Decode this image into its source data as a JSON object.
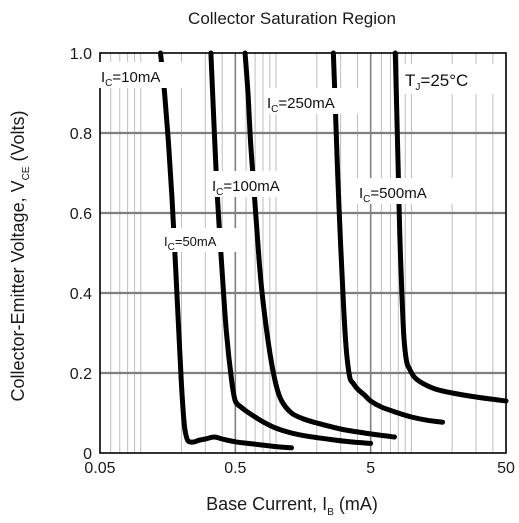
{
  "chart_data": {
    "type": "line",
    "title": "Collector Saturation Region",
    "xlabel": {
      "main": "Base Current, I",
      "sub": "B",
      "unit": " (mA)"
    },
    "ylabel": {
      "main": "Collector-Emitter Voltage, V",
      "sub": "CE",
      "unit": " (Volts)"
    },
    "x_scale": "log",
    "xlim": [
      0.05,
      50
    ],
    "ylim": [
      0,
      1.0
    ],
    "x_ticks": [
      {
        "value": 0.05,
        "label": "0.05"
      },
      {
        "value": 0.5,
        "label": "0.5"
      },
      {
        "value": 5,
        "label": "5"
      },
      {
        "value": 50,
        "label": "50"
      }
    ],
    "y_ticks": [
      {
        "value": 0,
        "label": "0"
      },
      {
        "value": 0.2,
        "label": "0.2"
      },
      {
        "value": 0.4,
        "label": "0.4"
      },
      {
        "value": 0.6,
        "label": "0.6"
      },
      {
        "value": 0.8,
        "label": "0.8"
      },
      {
        "value": 1.0,
        "label": "1.0"
      }
    ],
    "grid": true,
    "annotation": {
      "main": "T",
      "sub": "J",
      "rest": "=25°C"
    },
    "series": [
      {
        "name": "IC=10mA",
        "label": {
          "main": "I",
          "sub": "C",
          "rest": "=10mA"
        },
        "x": [
          0.14,
          0.15,
          0.16,
          0.17,
          0.18,
          0.19,
          0.2,
          0.21,
          0.22,
          0.23,
          0.25,
          0.27,
          0.3,
          0.35,
          0.4,
          0.5,
          0.7,
          1.0,
          1.3
        ],
        "y": [
          1.0,
          0.9,
          0.78,
          0.64,
          0.48,
          0.32,
          0.17,
          0.07,
          0.035,
          0.028,
          0.028,
          0.032,
          0.035,
          0.04,
          0.035,
          0.028,
          0.022,
          0.016,
          0.013
        ]
      },
      {
        "name": "IC=50mA",
        "label": {
          "main": "I",
          "sub": "C",
          "rest": "=50mA"
        },
        "x": [
          0.33,
          0.35,
          0.37,
          0.4,
          0.43,
          0.47,
          0.5,
          0.55,
          0.6,
          0.7,
          0.8,
          1.0,
          1.3,
          1.7,
          2.5,
          3.5,
          5.0
        ],
        "y": [
          1.0,
          0.8,
          0.63,
          0.45,
          0.3,
          0.18,
          0.13,
          0.115,
          0.105,
          0.09,
          0.078,
          0.062,
          0.05,
          0.042,
          0.034,
          0.028,
          0.024
        ]
      },
      {
        "name": "IC=100mA",
        "label": {
          "main": "I",
          "sub": "C",
          "rest": "=100mA"
        },
        "x": [
          0.59,
          0.62,
          0.65,
          0.7,
          0.75,
          0.8,
          0.9,
          1.0,
          1.1,
          1.3,
          1.6,
          2.0,
          3.0,
          4.5,
          6.0,
          7.5
        ],
        "y": [
          1.0,
          0.9,
          0.77,
          0.62,
          0.48,
          0.38,
          0.25,
          0.17,
          0.13,
          0.1,
          0.085,
          0.075,
          0.06,
          0.05,
          0.044,
          0.04
        ]
      },
      {
        "name": "IC=250mA",
        "label": {
          "main": "I",
          "sub": "C",
          "rest": "=250mA"
        },
        "x": [
          2.65,
          2.75,
          2.85,
          3.0,
          3.15,
          3.3,
          3.5,
          3.7,
          4.0,
          4.5,
          5.0,
          6.0,
          8.0,
          10.0,
          13.0,
          17.0
        ],
        "y": [
          1.0,
          0.85,
          0.7,
          0.52,
          0.37,
          0.26,
          0.19,
          0.175,
          0.16,
          0.145,
          0.13,
          0.115,
          0.1,
          0.09,
          0.082,
          0.077
        ]
      },
      {
        "name": "IC=500mA",
        "label": {
          "main": "I",
          "sub": "C",
          "rest": "=500mA"
        },
        "x": [
          7.6,
          7.8,
          8.0,
          8.2,
          8.5,
          8.8,
          9.2,
          9.7,
          10.5,
          12.0,
          15.0,
          20.0,
          30.0,
          45.0,
          50.0
        ],
        "y": [
          1.0,
          0.85,
          0.7,
          0.55,
          0.4,
          0.29,
          0.23,
          0.21,
          0.19,
          0.175,
          0.16,
          0.15,
          0.14,
          0.132,
          0.13
        ]
      }
    ]
  }
}
